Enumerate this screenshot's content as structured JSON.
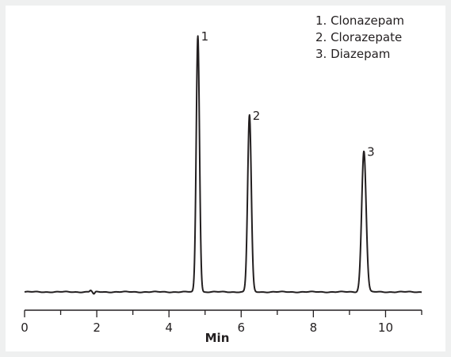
{
  "chart_data": {
    "type": "line",
    "title": "",
    "xlabel": "Min",
    "ylabel": "",
    "xlim": [
      0,
      11
    ],
    "x_ticks": [
      0,
      2,
      4,
      6,
      8,
      10
    ],
    "x_tick_labels": [
      "0",
      "2",
      "4",
      "6",
      "8",
      "10"
    ],
    "x_minor_step": 1,
    "grid": false,
    "legend_position": "top-right",
    "legend": [
      "1. Clonazepam",
      "2. Clorazepate",
      "3. Diazepam"
    ],
    "series": [
      {
        "peaks": [
          {
            "label": "1",
            "name": "Clonazepam",
            "retention_time": 4.8,
            "height": 1.0
          },
          {
            "label": "2",
            "name": "Clorazepate",
            "retention_time": 6.23,
            "height": 0.69
          },
          {
            "label": "3",
            "name": "Diazepam",
            "retention_time": 9.4,
            "height": 0.55
          }
        ],
        "baseline_disturbance_time": 1.9
      }
    ],
    "color": "#231f20"
  }
}
